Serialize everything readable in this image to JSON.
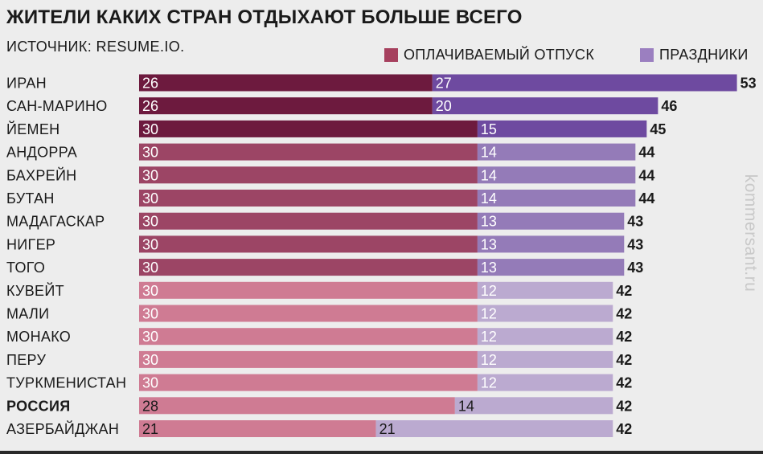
{
  "title": "ЖИТЕЛИ КАКИХ СТРАН ОТДЫХАЮТ БОЛЬШЕ ВСЕГО",
  "source": "ИСТОЧНИК: RESUME.IO.",
  "watermark": "kommersant.ru",
  "legend": [
    {
      "label": "ОПЛАЧИВАЕМЫЙ ОТПУСК",
      "color": "#a6405e"
    },
    {
      "label": "ПРАЗДНИКИ",
      "color": "#9b7fc0"
    }
  ],
  "chart_data": {
    "type": "bar",
    "orientation": "horizontal",
    "stacked": true,
    "title": "ЖИТЕЛИ КАКИХ СТРАН ОТДЫХАЮТ БОЛЬШЕ ВСЕГО",
    "categories": [
      "ИРАН",
      "САН-МАРИНО",
      "ЙЕМЕН",
      "АНДОРРА",
      "БАХРЕЙН",
      "БУТАН",
      "МАДАГАСКАР",
      "НИГЕР",
      "ТОГО",
      "КУВЕЙТ",
      "МАЛИ",
      "МОНАКО",
      "ПЕРУ",
      "ТУРКМЕНИСТАН",
      "РОССИЯ",
      "АЗЕРБАЙДЖАН"
    ],
    "highlight": "РОССИЯ",
    "series": [
      {
        "name": "ОПЛАЧИВАЕМЫЙ ОТПУСК",
        "values": [
          26,
          26,
          30,
          30,
          30,
          30,
          30,
          30,
          30,
          30,
          30,
          30,
          30,
          30,
          28,
          21
        ]
      },
      {
        "name": "ПРАЗДНИКИ",
        "values": [
          27,
          20,
          15,
          14,
          14,
          14,
          13,
          13,
          13,
          12,
          12,
          12,
          12,
          12,
          14,
          21
        ]
      }
    ],
    "totals": [
      53,
      46,
      45,
      44,
      44,
      44,
      43,
      43,
      43,
      42,
      42,
      42,
      42,
      42,
      42,
      42
    ],
    "row_colors": [
      [
        "#6d1a3e",
        "#6e4aa0"
      ],
      [
        "#6d1a3e",
        "#6e4aa0"
      ],
      [
        "#6d1a3e",
        "#6e4aa0"
      ],
      [
        "#9c4565",
        "#947bb8"
      ],
      [
        "#9c4565",
        "#947bb8"
      ],
      [
        "#9c4565",
        "#947bb8"
      ],
      [
        "#9c4565",
        "#947bb8"
      ],
      [
        "#9c4565",
        "#947bb8"
      ],
      [
        "#9c4565",
        "#947bb8"
      ],
      [
        "#cf7b93",
        "#bbaad0"
      ],
      [
        "#cf7b93",
        "#bbaad0"
      ],
      [
        "#cf7b93",
        "#bbaad0"
      ],
      [
        "#cf7b93",
        "#bbaad0"
      ],
      [
        "#cf7b93",
        "#bbaad0"
      ],
      [
        "#cf7b93",
        "#bbaad0"
      ],
      [
        "#cf7b93",
        "#bbaad0"
      ]
    ],
    "label_dark_rows": [
      "РОССИЯ",
      "АЗЕРБАЙДЖАН"
    ],
    "xlim": [
      0,
      53
    ],
    "grid": false,
    "legend_position": "top-right"
  }
}
